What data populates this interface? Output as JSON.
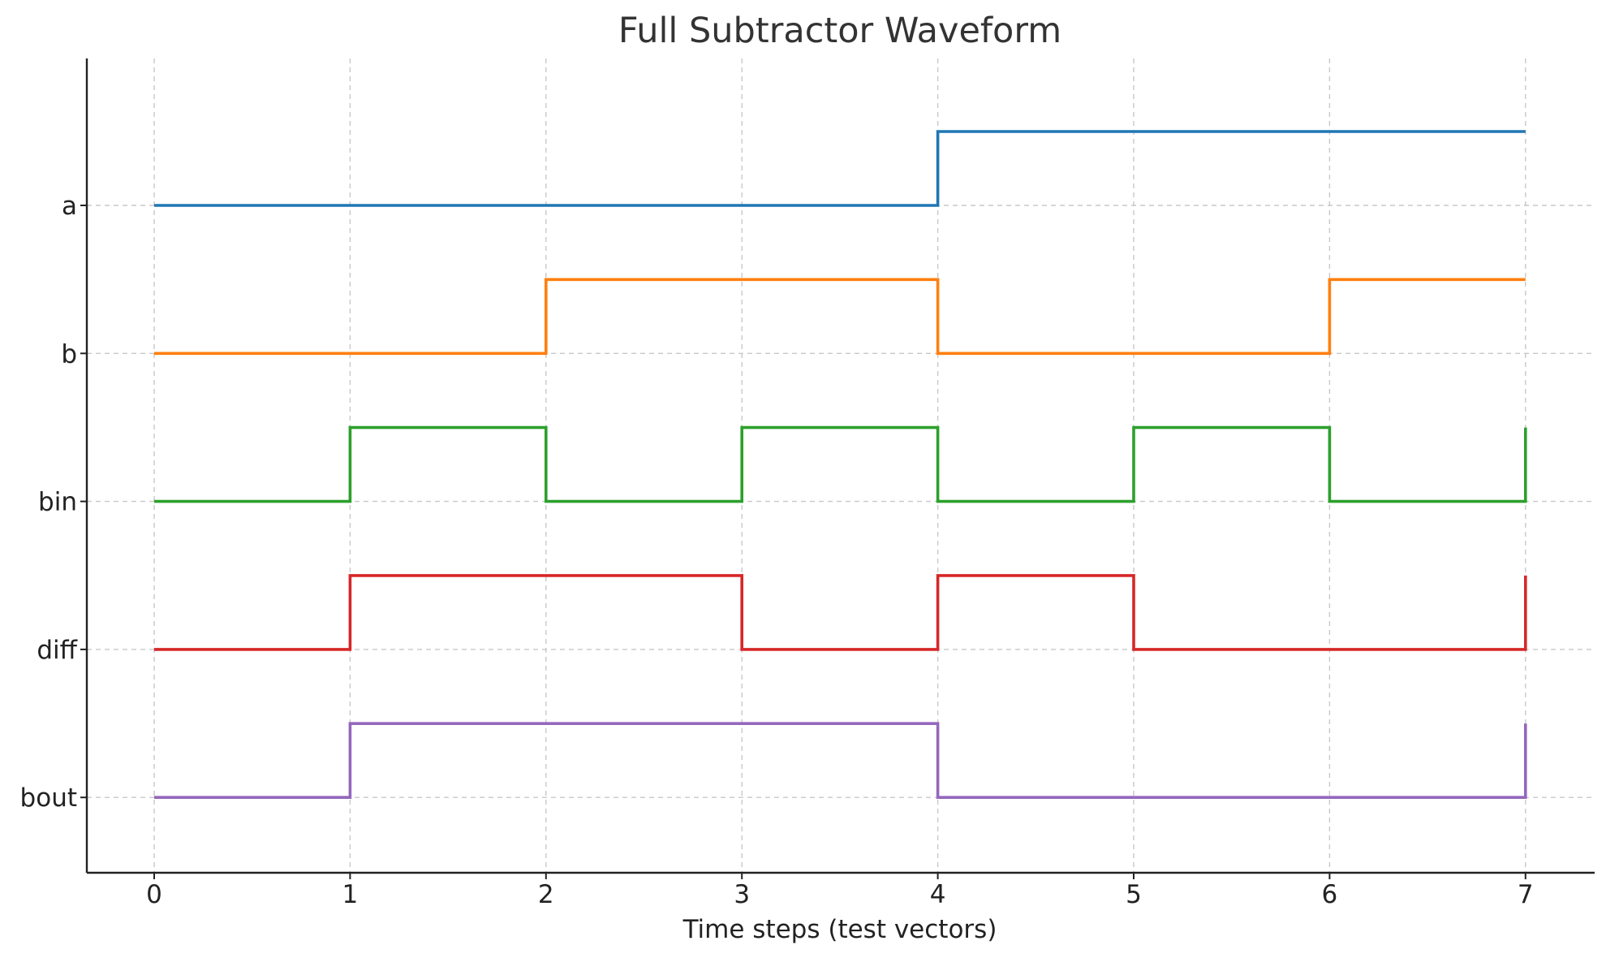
{
  "chart_data": {
    "type": "line",
    "subtype": "digital-waveform (step)",
    "title": "Full Subtractor Waveform",
    "xlabel": "Time steps (test vectors)",
    "ylabel": "",
    "x_ticks": [
      0,
      1,
      2,
      3,
      4,
      5,
      6,
      7
    ],
    "xlim": [
      -0.35,
      7.35
    ],
    "grid": true,
    "legend": "none",
    "x": [
      0,
      1,
      2,
      3,
      4,
      5,
      6,
      7
    ],
    "series": [
      {
        "name": "a",
        "color": "#1f77b4",
        "values": [
          0,
          0,
          0,
          0,
          1,
          1,
          1,
          1
        ]
      },
      {
        "name": "b",
        "color": "#ff7f0e",
        "values": [
          0,
          0,
          1,
          1,
          0,
          0,
          1,
          1
        ]
      },
      {
        "name": "bin",
        "color": "#2ca02c",
        "values": [
          0,
          1,
          0,
          1,
          0,
          1,
          0,
          1
        ]
      },
      {
        "name": "diff",
        "color": "#d62728",
        "values": [
          0,
          1,
          1,
          0,
          1,
          0,
          0,
          1
        ]
      },
      {
        "name": "bout",
        "color": "#9467bd",
        "values": [
          0,
          1,
          1,
          1,
          0,
          0,
          0,
          1
        ]
      }
    ]
  }
}
